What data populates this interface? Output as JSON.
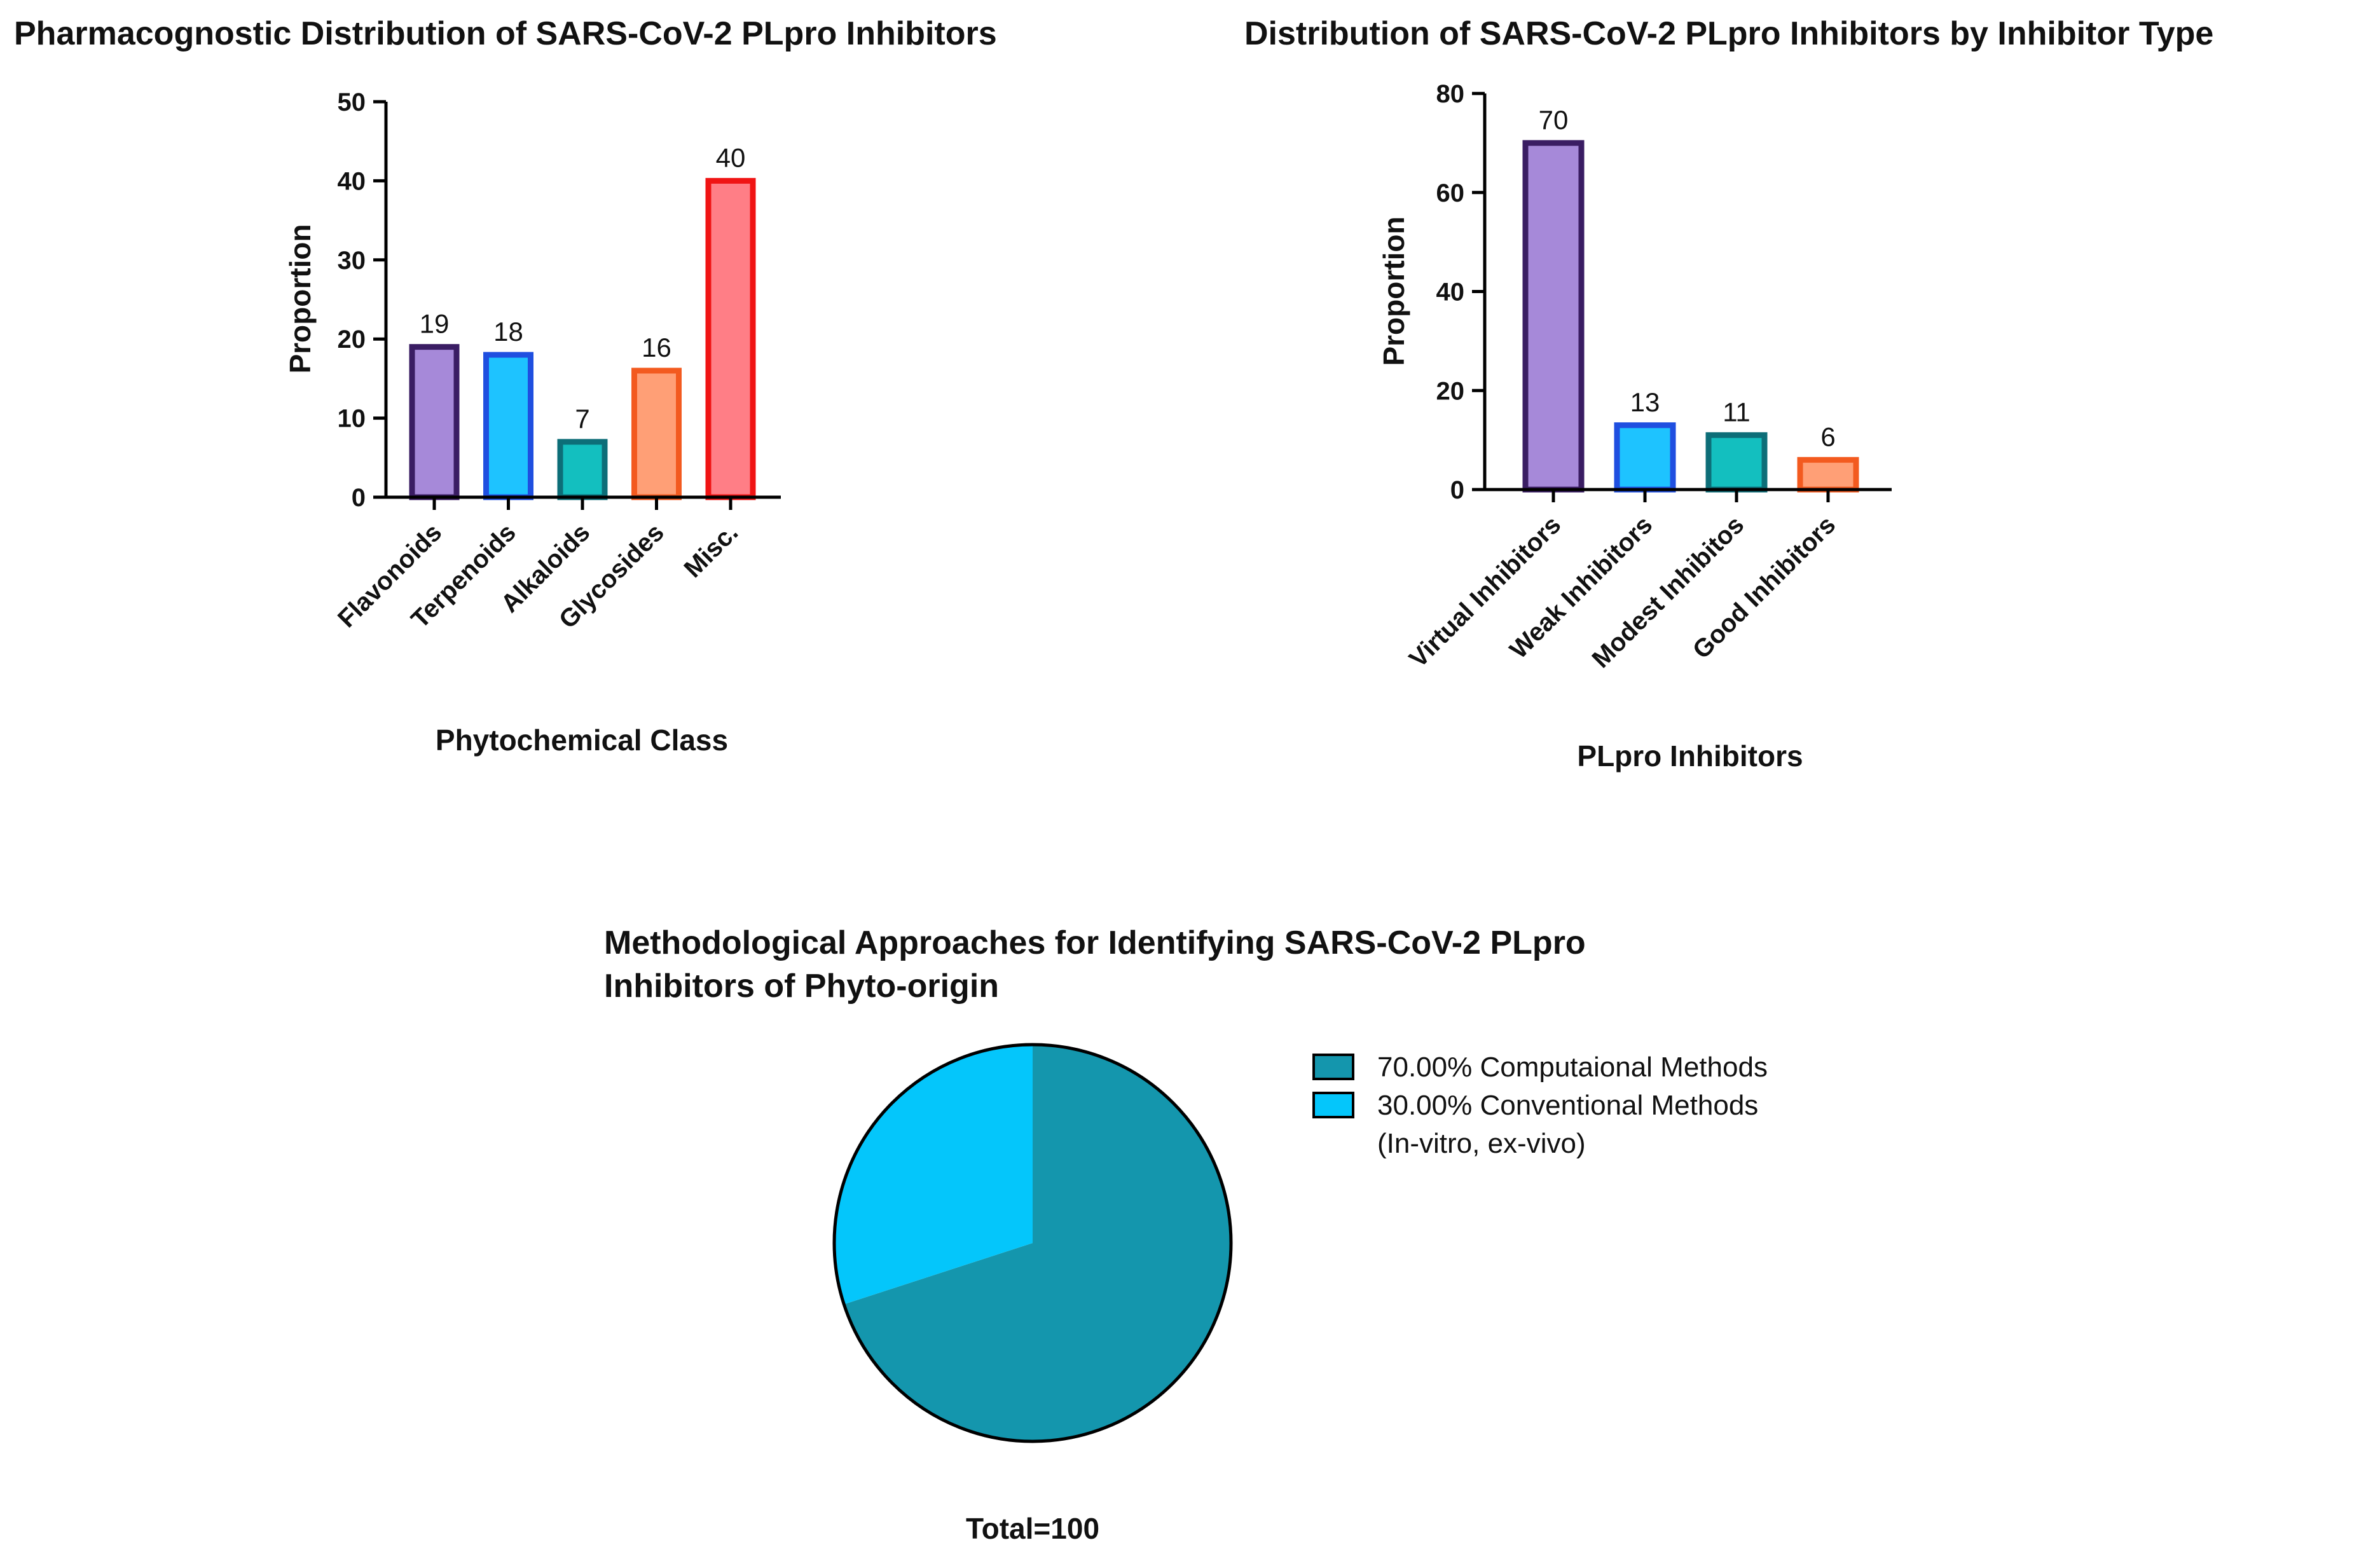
{
  "chart_data": [
    {
      "id": "chart1",
      "type": "bar",
      "title": "Pharmacognostic Distribution of SARS-CoV-2 PLpro Inhibitors",
      "xlabel": "Phytochemical Class",
      "ylabel": "Proportion",
      "ylim": [
        0,
        50
      ],
      "yticks": [
        0,
        10,
        20,
        30,
        40,
        50
      ],
      "categories": [
        "Flavonoids",
        "Terpenoids",
        "Alkaloids",
        "Glycosides",
        "Misc."
      ],
      "values": [
        19,
        18,
        7,
        16,
        40
      ],
      "data_labels": [
        "19",
        "18",
        "7",
        "16",
        "40"
      ],
      "colors": [
        {
          "fill": "#a689d9",
          "stroke": "#3a1d63"
        },
        {
          "fill": "#1ec3ff",
          "stroke": "#1f4fe0"
        },
        {
          "fill": "#13bfbf",
          "stroke": "#0d6e78"
        },
        {
          "fill": "#ff9f76",
          "stroke": "#f35a1f"
        },
        {
          "fill": "#ff7e86",
          "stroke": "#f01414"
        }
      ]
    },
    {
      "id": "chart2",
      "type": "bar",
      "title": "Distribution of SARS-CoV-2 PLpro Inhibitors by Inhibitor Type",
      "xlabel": "PLpro Inhibitors",
      "ylabel": "Proportion",
      "ylim": [
        0,
        80
      ],
      "yticks": [
        0,
        20,
        40,
        60,
        80
      ],
      "categories": [
        "Virtual Inhibitors",
        "Weak Inhibitors",
        "Modest Inhibitos",
        "Good Inhibitors"
      ],
      "values": [
        70,
        13,
        11,
        6
      ],
      "data_labels": [
        "70",
        "13",
        "11",
        "6"
      ],
      "colors": [
        {
          "fill": "#a689d9",
          "stroke": "#3a1d63"
        },
        {
          "fill": "#1ec3ff",
          "stroke": "#1f4fe0"
        },
        {
          "fill": "#13bfbf",
          "stroke": "#0d6e78"
        },
        {
          "fill": "#ff9f76",
          "stroke": "#f35a1f"
        }
      ]
    },
    {
      "id": "chart3",
      "type": "pie",
      "title_lines": [
        "Methodological Approaches for Identifying SARS-CoV-2 PLpro",
        "Inhibitors of Phyto-origin"
      ],
      "slices": [
        {
          "label": "70.00%  Computaional Methods",
          "label_lines": [
            "70.00%  Computaional Methods"
          ],
          "value": 70,
          "color": "#1496ad"
        },
        {
          "label": "30.00%  Conventional Methods (In-vitro, ex-vivo)",
          "label_lines": [
            "30.00%  Conventional Methods",
            "(In-vitro, ex-vivo)"
          ],
          "value": 30,
          "color": "#04c6fb"
        }
      ],
      "footer": "Total=100"
    }
  ]
}
